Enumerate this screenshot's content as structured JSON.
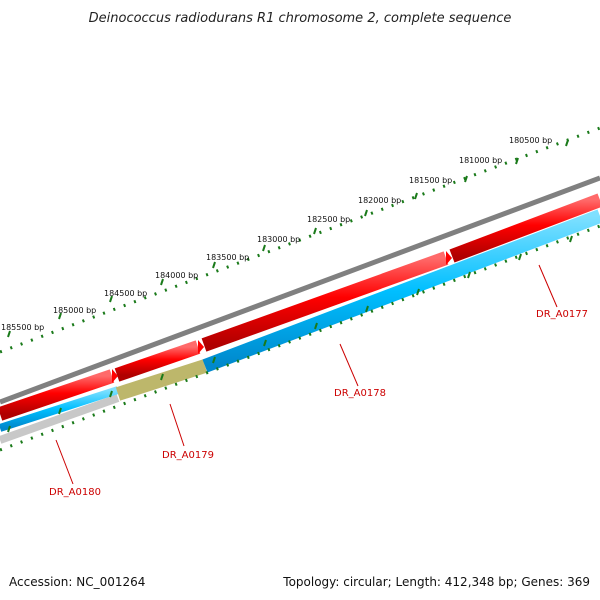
{
  "title": "Deinococcus radiodurans R1 chromosome 2, complete sequence",
  "footer": {
    "accession": "Accession: NC_001264",
    "summary": "Topology: circular; Length: 412,348 bp; Genes: 369"
  },
  "scale": {
    "labels": [
      "180500 bp",
      "181000 bp",
      "181500 bp",
      "182000 bp",
      "182500 bp",
      "183000 bp",
      "183500 bp",
      "184000 bp",
      "184500 bp",
      "185000 bp",
      "185500 bp"
    ]
  },
  "genes": [
    {
      "name": "DR_A0177",
      "color": "#ff0000",
      "track": "outer"
    },
    {
      "name": "DR_A0178",
      "color": "#00bfff",
      "track": "inner"
    },
    {
      "name": "DR_A0179",
      "color": "#bdb76b",
      "track": "inner"
    },
    {
      "name": "DR_A0180",
      "color": "#bdbdbd",
      "track": "inner"
    }
  ],
  "colors": {
    "backbone": "#808080",
    "forward_gene": "#ff0000",
    "reverse_gene": "#00bfff",
    "tick": "#1a7a1a",
    "label": "#cc0000"
  }
}
